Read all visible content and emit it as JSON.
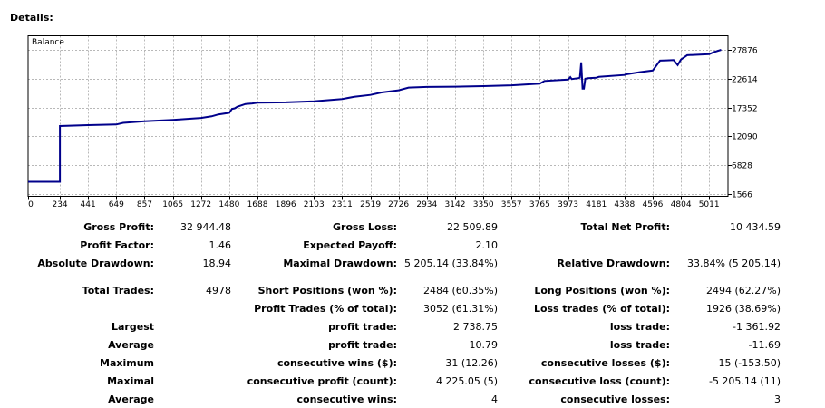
{
  "header": {
    "title": "Details:"
  },
  "chart_data": {
    "type": "line",
    "title": "Balance",
    "x_ticks": [
      0,
      234,
      441,
      649,
      857,
      1065,
      1272,
      1480,
      1688,
      1896,
      2103,
      2311,
      2519,
      2726,
      2934,
      3142,
      3350,
      3557,
      3765,
      3973,
      4181,
      4388,
      4596,
      4804,
      5011
    ],
    "y_ticks": [
      27876,
      22614,
      17352,
      12090,
      6828,
      1566
    ],
    "xlim": [
      0,
      5150
    ],
    "ylim": [
      1566,
      27876
    ],
    "grid": true,
    "line_color": "#00008b",
    "series": [
      {
        "x": [
          0,
          100,
          150,
          200,
          234,
          234,
          441,
          649,
          700,
          857,
          1065,
          1272,
          1350,
          1400,
          1480,
          1500,
          1520,
          1540,
          1600,
          1650,
          1688,
          1896,
          2103,
          2311,
          2400,
          2519,
          2600,
          2726,
          2800,
          2934,
          3142,
          3350,
          3557,
          3765,
          3800,
          3973,
          3990,
          4000,
          4050,
          4060,
          4070,
          4080,
          4090,
          4100,
          4120,
          4181,
          4200,
          4388,
          4400,
          4500,
          4596,
          4650,
          4700,
          4750,
          4780,
          4804,
          4850,
          5011,
          5050,
          5100
        ],
        "y": [
          3800,
          3800,
          3800,
          3800,
          3800,
          13970,
          14150,
          14250,
          14550,
          14850,
          15100,
          15450,
          15750,
          16100,
          16400,
          17100,
          17200,
          17500,
          18000,
          18100,
          18250,
          18300,
          18500,
          18900,
          19300,
          19650,
          20100,
          20500,
          21000,
          21100,
          21150,
          21250,
          21400,
          21700,
          22200,
          22450,
          22900,
          22550,
          22700,
          22800,
          25600,
          20800,
          20800,
          22600,
          22700,
          22800,
          22950,
          23300,
          23400,
          23800,
          24100,
          25900,
          25950,
          26000,
          25100,
          26100,
          26900,
          27100,
          27500,
          27876
        ]
      }
    ]
  },
  "stats": {
    "rows": [
      [
        "Gross Profit:",
        "32 944.48",
        "Gross Loss:",
        "22 509.89",
        "Total Net Profit:",
        "10 434.59"
      ],
      [
        "Profit Factor:",
        "1.46",
        "Expected Payoff:",
        "2.10",
        "",
        ""
      ],
      [
        "Absolute Drawdown:",
        "18.94",
        "Maximal Drawdown:",
        "5 205.14 (33.84%)",
        "Relative Drawdown:",
        "33.84% (5 205.14)"
      ],
      [
        "Total Trades:",
        "4978",
        "Short Positions (won %):",
        "2484 (60.35%)",
        "Long Positions (won %):",
        "2494 (62.27%)"
      ],
      [
        "",
        "",
        "Profit Trades (% of total):",
        "3052 (61.31%)",
        "Loss trades (% of total):",
        "1926 (38.69%)"
      ],
      [
        "Largest",
        "",
        "profit trade:",
        "2 738.75",
        "loss trade:",
        "-1 361.92"
      ],
      [
        "Average",
        "",
        "profit trade:",
        "10.79",
        "loss trade:",
        "-11.69"
      ],
      [
        "Maximum",
        "",
        "consecutive wins ($):",
        "31 (12.26)",
        "consecutive losses ($):",
        "15 (-153.50)"
      ],
      [
        "Maximal",
        "",
        "consecutive profit (count):",
        "4 225.05 (5)",
        "consecutive loss (count):",
        "-5 205.14 (11)"
      ],
      [
        "Average",
        "",
        "consecutive wins:",
        "4",
        "consecutive losses:",
        "3"
      ]
    ]
  }
}
